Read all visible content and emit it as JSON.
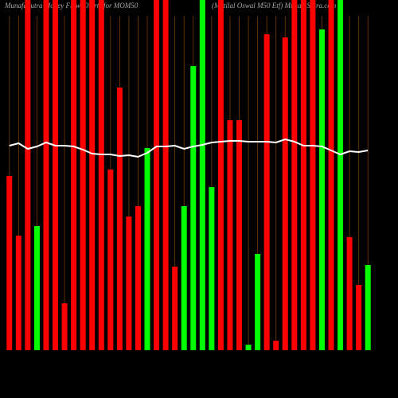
{
  "chart_data": {
    "type": "bar",
    "title": "MunafaSutra Money Flow Charts for MOM50",
    "subtitle": "(Motilal Oswal M50 Etf) MunafaSutra.com",
    "ylim": [
      0,
      440
    ],
    "values": [
      219,
      144,
      440,
      156,
      440,
      440,
      59,
      440,
      440,
      440,
      440,
      227,
      330,
      168,
      181,
      254,
      440,
      440,
      105,
      181,
      357,
      440,
      205,
      440,
      289,
      289,
      7,
      121,
      397,
      12,
      393,
      440,
      440,
      440,
      403,
      440,
      440,
      142,
      82,
      107
    ],
    "colors": [
      "#ff0000",
      "#ff0000",
      "#ff0000",
      "#00ff00",
      "#ff0000",
      "#ff0000",
      "#ff0000",
      "#ff0000",
      "#ff0000",
      "#ff0000",
      "#ff0000",
      "#ff0000",
      "#ff0000",
      "#ff0000",
      "#ff0000",
      "#00ff00",
      "#ff0000",
      "#ff0000",
      "#ff0000",
      "#00ff00",
      "#00ff00",
      "#00ff00",
      "#00ff00",
      "#ff0000",
      "#ff0000",
      "#ff0000",
      "#00ff00",
      "#00ff00",
      "#ff0000",
      "#ff0000",
      "#ff0000",
      "#ff0000",
      "#ff0000",
      "#ff0000",
      "#00ff00",
      "#ff0000",
      "#00ff00",
      "#ff0000",
      "#ff0000",
      "#00ff00"
    ],
    "line": {
      "color": "#ffffff",
      "values": [
        257,
        260,
        253,
        256,
        261,
        257,
        257,
        256,
        252,
        247,
        246,
        246,
        244,
        245,
        243,
        248,
        256,
        256,
        257,
        253,
        256,
        258,
        261,
        262,
        263,
        263,
        262,
        262,
        262,
        261,
        265,
        262,
        257,
        257,
        256,
        251,
        246,
        250,
        249,
        251
      ]
    }
  }
}
